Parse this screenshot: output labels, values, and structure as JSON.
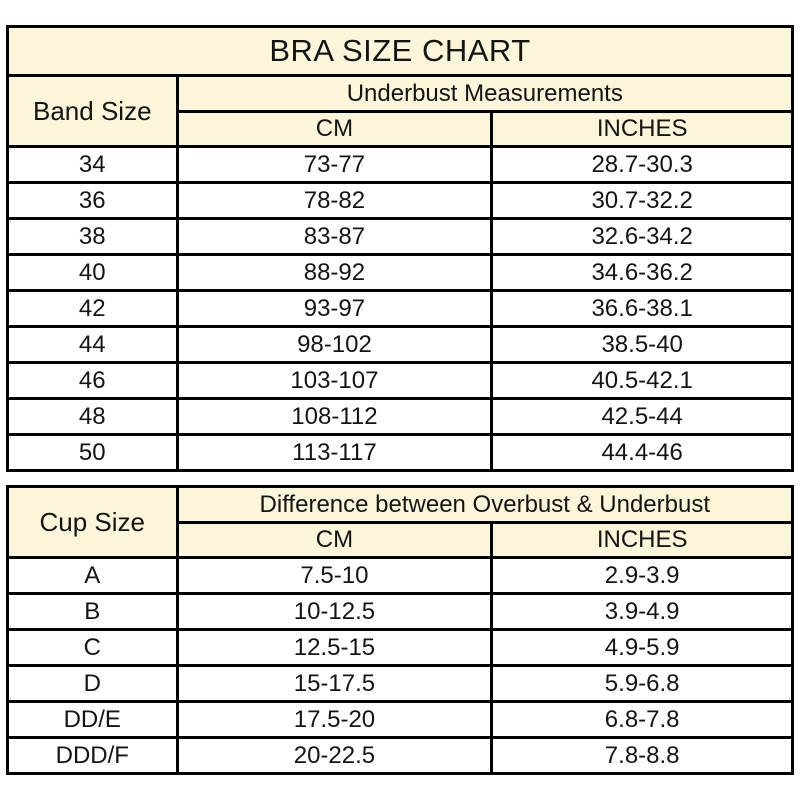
{
  "page_title": "BRA SIZE CHART",
  "colors": {
    "header_bg": "#FBF5DA",
    "border": "#000000",
    "page_bg": "#FFFFFF",
    "text": "#141414"
  },
  "chart_data": [
    {
      "type": "table",
      "title": "BRA SIZE CHART",
      "corner_header": "Band Size",
      "group_header": "Underbust Measurements",
      "sub_headers": [
        "CM",
        "INCHES"
      ],
      "rows": [
        [
          "34",
          "73-77",
          "28.7-30.3"
        ],
        [
          "36",
          "78-82",
          "30.7-32.2"
        ],
        [
          "38",
          "83-87",
          "32.6-34.2"
        ],
        [
          "40",
          "88-92",
          "34.6-36.2"
        ],
        [
          "42",
          "93-97",
          "36.6-38.1"
        ],
        [
          "44",
          "98-102",
          "38.5-40"
        ],
        [
          "46",
          "103-107",
          "40.5-42.1"
        ],
        [
          "48",
          "108-112",
          "42.5-44"
        ],
        [
          "50",
          "113-117",
          "44.4-46"
        ]
      ]
    },
    {
      "type": "table",
      "corner_header": "Cup Size",
      "group_header": "Difference between Overbust & Underbust",
      "sub_headers": [
        "CM",
        "INCHES"
      ],
      "rows": [
        [
          "A",
          "7.5-10",
          "2.9-3.9"
        ],
        [
          "B",
          "10-12.5",
          "3.9-4.9"
        ],
        [
          "C",
          "12.5-15",
          "4.9-5.9"
        ],
        [
          "D",
          "15-17.5",
          "5.9-6.8"
        ],
        [
          "DD/E",
          "17.5-20",
          "6.8-7.8"
        ],
        [
          "DDD/F",
          "20-22.5",
          "7.8-8.8"
        ]
      ]
    }
  ]
}
